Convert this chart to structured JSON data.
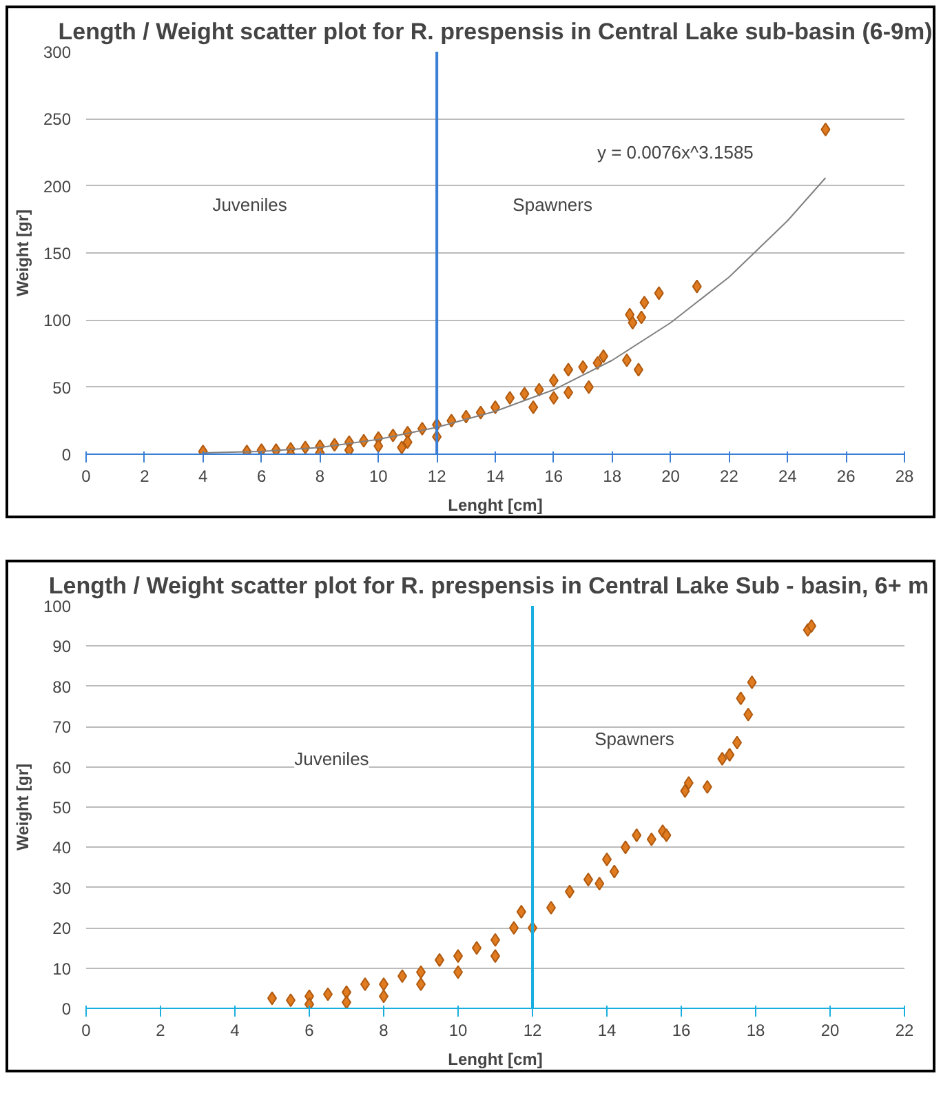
{
  "chart_data": [
    {
      "type": "scatter",
      "title": "Length / Weight scatter plot for R. prespensis in Central Lake sub-basin (6-9m)",
      "xlabel": "Lenght [cm]",
      "ylabel": "Weight [gr]",
      "xlim": [
        0,
        28
      ],
      "xticks": [
        0,
        2,
        4,
        6,
        8,
        10,
        12,
        14,
        16,
        18,
        20,
        22,
        24,
        26,
        28
      ],
      "ylim": [
        0,
        300
      ],
      "yticks": [
        0,
        50,
        100,
        150,
        200,
        250,
        300
      ],
      "grid": "y",
      "marker": "diamond",
      "ref_lines": [
        {
          "axis": "x",
          "value": 12,
          "color": "#3a7fd5"
        }
      ],
      "annotations": [
        "Juveniles",
        "Spawners",
        "y = 0.0076x^3.1585"
      ],
      "series": [
        {
          "color": "#e07b20",
          "x": [
            4,
            5.5,
            6,
            6.5,
            7,
            7.5,
            8,
            8.5,
            9,
            9.5,
            10,
            10.5,
            11,
            11.5,
            12,
            12.5,
            13,
            13.5,
            14,
            14.5,
            15,
            15.3,
            15.5,
            16,
            16,
            16.5,
            16.5,
            17,
            17.2,
            17.5,
            17.7,
            18.5,
            18.6,
            18.7,
            18.9,
            19,
            19.1,
            19.6,
            20.9,
            25.3,
            7,
            8,
            9,
            10,
            11,
            12,
            10.8
          ],
          "values": [
            2,
            2,
            3,
            3,
            4,
            5,
            6,
            7,
            9,
            10,
            12,
            14,
            16,
            19,
            22,
            25,
            28,
            31,
            35,
            42,
            45,
            35,
            48,
            55,
            42,
            63,
            46,
            65,
            50,
            68,
            73,
            70,
            104,
            98,
            63,
            102,
            113,
            120,
            125,
            242,
            0,
            1,
            3,
            6,
            9,
            13,
            5
          ]
        },
        {
          "type": "line",
          "color": "#808080",
          "marker": "none",
          "x": [
            4,
            6,
            8,
            10,
            12,
            14,
            16,
            18,
            20,
            22,
            24,
            25.3
          ],
          "values": [
            1,
            2,
            5,
            11,
            20,
            32,
            48,
            70,
            98,
            132,
            174,
            206
          ]
        }
      ]
    },
    {
      "type": "scatter",
      "title": "Length / Weight scatter plot for R. prespensis in Central Lake   Sub - basin, 6+ m",
      "xlabel": "Lenght [cm]",
      "ylabel": "Weight [gr]",
      "xlim": [
        0,
        22
      ],
      "xticks": [
        0,
        2,
        4,
        6,
        8,
        10,
        12,
        14,
        16,
        18,
        20,
        22
      ],
      "ylim": [
        0,
        100
      ],
      "yticks": [
        0,
        10,
        20,
        30,
        40,
        50,
        60,
        70,
        80,
        90,
        100
      ],
      "grid": "y",
      "marker": "diamond",
      "ref_lines": [
        {
          "axis": "x",
          "value": 12,
          "color": "#1aaee0"
        }
      ],
      "annotations": [
        "Juveniles",
        "Spawners"
      ],
      "series": [
        {
          "color": "#e07b20",
          "x": [
            5,
            5.5,
            6,
            6.5,
            7,
            7.5,
            8,
            8.5,
            9,
            9.5,
            10,
            10.5,
            11,
            11.5,
            11.7,
            12,
            12.5,
            13,
            13.5,
            13.8,
            14,
            14.2,
            14.5,
            14.8,
            15.2,
            15.5,
            15.6,
            16.1,
            16.2,
            16.7,
            17.1,
            17.3,
            17.5,
            17.6,
            17.8,
            17.9,
            19.4,
            19.5,
            6,
            7,
            8,
            9,
            10,
            11
          ],
          "values": [
            2.5,
            2,
            3,
            3.5,
            4,
            6,
            6,
            8,
            9,
            12,
            13,
            15,
            17,
            20,
            24,
            20,
            25,
            29,
            32,
            31,
            37,
            34,
            40,
            43,
            42,
            44,
            43,
            54,
            56,
            55,
            62,
            63,
            66,
            77,
            73,
            81,
            94,
            95,
            1,
            1.5,
            3,
            6,
            9,
            13
          ]
        }
      ]
    }
  ]
}
